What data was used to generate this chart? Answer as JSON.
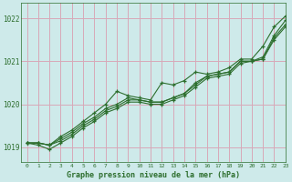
{
  "title": "Graphe pression niveau de la mer (hPa)",
  "bg_color": "#ceeaea",
  "plot_bg_color": "#ceeaea",
  "grid_color": "#d8a8b8",
  "line_color": "#2d6e2d",
  "text_color": "#2d6e2d",
  "xlim": [
    -0.5,
    23
  ],
  "ylim": [
    1018.65,
    1022.35
  ],
  "xticks": [
    0,
    1,
    2,
    3,
    4,
    5,
    6,
    7,
    8,
    9,
    10,
    11,
    12,
    13,
    14,
    15,
    16,
    17,
    18,
    19,
    20,
    21,
    22,
    23
  ],
  "yticks": [
    1019,
    1020,
    1021,
    1022
  ],
  "series": [
    [
      1019.1,
      1019.1,
      1019.05,
      1019.15,
      1019.3,
      1019.5,
      1019.65,
      1019.85,
      1019.95,
      1020.1,
      1020.1,
      1020.05,
      1020.05,
      1020.15,
      1020.25,
      1020.45,
      1020.65,
      1020.7,
      1020.75,
      1021.0,
      1021.0,
      1021.05,
      1021.55,
      1021.85
    ],
    [
      1019.1,
      1019.05,
      1018.95,
      1019.1,
      1019.25,
      1019.45,
      1019.6,
      1019.8,
      1019.9,
      1020.05,
      1020.05,
      1020.0,
      1020.0,
      1020.1,
      1020.2,
      1020.4,
      1020.6,
      1020.65,
      1020.7,
      1020.95,
      1021.0,
      1021.05,
      1021.5,
      1021.8
    ],
    [
      1019.1,
      1019.1,
      1019.05,
      1019.2,
      1019.35,
      1019.55,
      1019.7,
      1019.9,
      1020.0,
      1020.15,
      1020.1,
      1020.05,
      1020.05,
      1020.15,
      1020.25,
      1020.5,
      1020.65,
      1020.7,
      1020.75,
      1021.0,
      1021.0,
      1021.1,
      1021.6,
      1021.95
    ],
    [
      1019.1,
      1019.1,
      1019.05,
      1019.25,
      1019.4,
      1019.6,
      1019.8,
      1020.0,
      1020.3,
      1020.2,
      1020.15,
      1020.1,
      1020.5,
      1020.45,
      1020.55,
      1020.75,
      1020.7,
      1020.75,
      1020.85,
      1021.05,
      1021.05,
      1021.35,
      1021.8,
      1022.05
    ]
  ]
}
